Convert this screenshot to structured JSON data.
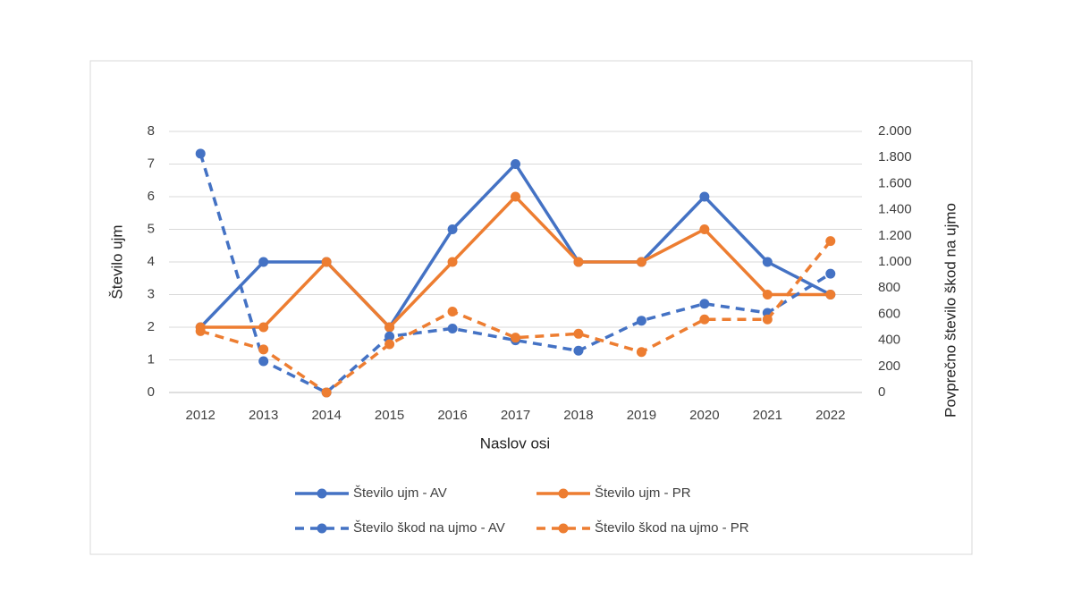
{
  "chart_data": {
    "type": "line",
    "x_label": "Naslov osi",
    "y_label": "Število ujm",
    "y2_label": "Povprečno število škod na ujmo",
    "categories": [
      "2012",
      "2013",
      "2014",
      "2015",
      "2016",
      "2017",
      "2018",
      "2019",
      "2020",
      "2021",
      "2022"
    ],
    "series": [
      {
        "name": "Število ujm - AV",
        "color": "#4472c4",
        "dashed": false,
        "values": [
          2,
          4,
          4,
          2,
          5,
          7,
          4,
          4,
          6,
          4,
          3
        ]
      },
      {
        "name": "Število ujm - PR",
        "color": "#ed7d31",
        "dashed": false,
        "values": [
          2,
          2,
          4,
          2,
          4,
          6,
          4,
          4,
          5,
          3,
          3
        ]
      },
      {
        "name": "Število škod na ujmo - AV",
        "color": "#4472c4",
        "dashed": true,
        "axis": "y2",
        "values": [
          1830,
          240,
          0,
          430,
          490,
          400,
          320,
          550,
          680,
          610,
          910
        ]
      },
      {
        "name": "Število škod na ujmo - PR",
        "color": "#ed7d31",
        "dashed": true,
        "axis": "y2",
        "values": [
          470,
          330,
          0,
          370,
          620,
          420,
          450,
          310,
          560,
          560,
          1160
        ]
      }
    ],
    "ylim": [
      0,
      8
    ],
    "yticks": [
      0,
      1,
      2,
      3,
      4,
      5,
      6,
      7,
      8
    ],
    "y2lim": [
      0,
      2000
    ],
    "y2ticks": [
      0,
      200,
      400,
      600,
      800,
      {
        "value": 1000,
        "label": "1.000"
      },
      {
        "value": 1200,
        "label": "1.200"
      },
      {
        "value": 1400,
        "label": "1.400"
      },
      {
        "value": 1600,
        "label": "1.600"
      },
      {
        "value": 1800,
        "label": "1.800"
      },
      {
        "value": 2000,
        "label": "2.000"
      }
    ],
    "grid": true
  }
}
